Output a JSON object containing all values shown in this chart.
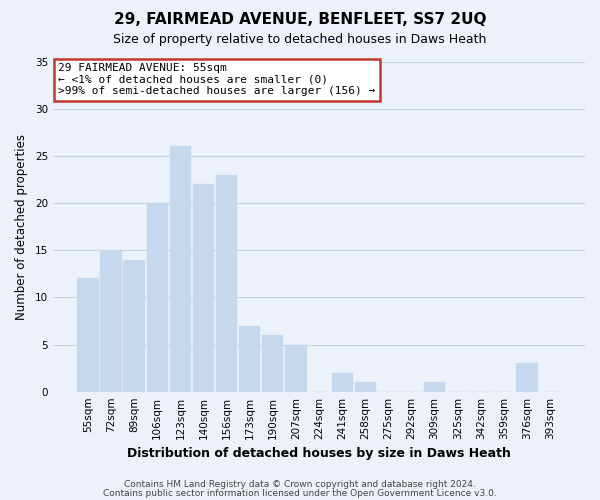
{
  "title": "29, FAIRMEAD AVENUE, BENFLEET, SS7 2UQ",
  "subtitle": "Size of property relative to detached houses in Daws Heath",
  "xlabel": "Distribution of detached houses by size in Daws Heath",
  "ylabel": "Number of detached properties",
  "bar_labels": [
    "55sqm",
    "72sqm",
    "89sqm",
    "106sqm",
    "123sqm",
    "140sqm",
    "156sqm",
    "173sqm",
    "190sqm",
    "207sqm",
    "224sqm",
    "241sqm",
    "258sqm",
    "275sqm",
    "292sqm",
    "309sqm",
    "325sqm",
    "342sqm",
    "359sqm",
    "376sqm",
    "393sqm"
  ],
  "bar_heights": [
    12,
    15,
    14,
    20,
    26,
    22,
    23,
    7,
    6,
    5,
    0,
    2,
    1,
    0,
    0,
    1,
    0,
    0,
    0,
    3,
    0
  ],
  "bar_color": "#c5d8ee",
  "ylim": [
    0,
    35
  ],
  "yticks": [
    0,
    5,
    10,
    15,
    20,
    25,
    30,
    35
  ],
  "annotation_title": "29 FAIRMEAD AVENUE: 55sqm",
  "annotation_line1": "← <1% of detached houses are smaller (0)",
  "annotation_line2": ">99% of semi-detached houses are larger (156) →",
  "footer_line1": "Contains HM Land Registry data © Crown copyright and database right 2024.",
  "footer_line2": "Contains public sector information licensed under the Open Government Licence v3.0.",
  "background_color": "#edf2fa",
  "grid_color": "#c8d4e4",
  "ann_border_color": "#c0392b",
  "title_fontsize": 11,
  "subtitle_fontsize": 9,
  "ylabel_fontsize": 8.5,
  "xlabel_fontsize": 9,
  "tick_fontsize": 7.5,
  "footer_fontsize": 6.5
}
